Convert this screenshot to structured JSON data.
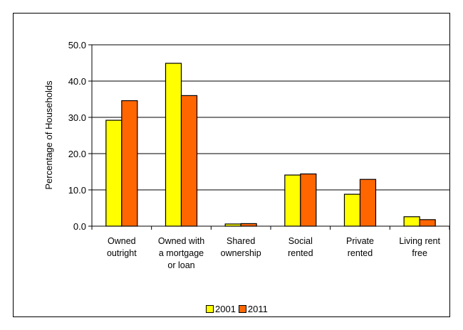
{
  "chart_data": {
    "type": "bar",
    "ylabel": "Percentage of Households",
    "ylim": [
      0,
      50
    ],
    "ytick_values": [
      0,
      10,
      20,
      30,
      40,
      50
    ],
    "ytick_labels": [
      "0.0",
      "10.0",
      "20.0",
      "30.0",
      "40.0",
      "50.0"
    ],
    "categories": [
      [
        "Owned",
        "outright"
      ],
      [
        "Owned with",
        "a mortgage",
        "or loan"
      ],
      [
        "Shared",
        "ownership"
      ],
      [
        "Social",
        "rented"
      ],
      [
        "Private",
        "rented"
      ],
      [
        "Living rent",
        "free"
      ]
    ],
    "series": [
      {
        "name": "2001",
        "color": "#FFFF00",
        "values": [
          29.2,
          44.9,
          0.6,
          14.1,
          8.8,
          2.6
        ]
      },
      {
        "name": "2011",
        "color": "#FF6600",
        "values": [
          34.6,
          36.0,
          0.7,
          14.4,
          12.9,
          1.8
        ]
      }
    ],
    "grid": true,
    "legend_position": "bottom"
  }
}
